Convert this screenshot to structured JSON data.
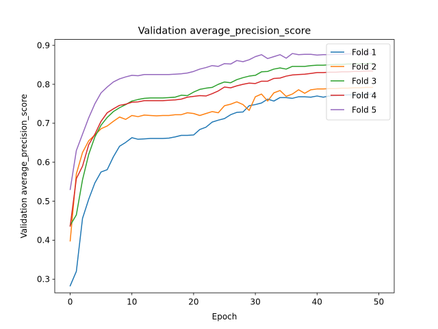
{
  "chart_data": {
    "type": "line",
    "title": "Validation average_precision_score",
    "xlabel": "Epoch",
    "ylabel": "Validation average_precision_score",
    "xlim": [
      -2.5,
      52.5
    ],
    "ylim": [
      0.265,
      0.915
    ],
    "xticks": [
      0,
      10,
      20,
      30,
      40,
      50
    ],
    "yticks": [
      0.3,
      0.4,
      0.5,
      0.6,
      0.7,
      0.8,
      0.9
    ],
    "grid": false,
    "legend_position": "top-right",
    "x": [
      0,
      1,
      2,
      3,
      4,
      5,
      6,
      7,
      8,
      9,
      10,
      11,
      12,
      13,
      14,
      15,
      16,
      17,
      18,
      19,
      20,
      21,
      22,
      23,
      24,
      25,
      26,
      27,
      28,
      29,
      30,
      31,
      32,
      33,
      34,
      35,
      36,
      37,
      38,
      39,
      40,
      41,
      42,
      43,
      44,
      45,
      46,
      47,
      48,
      49
    ],
    "series": [
      {
        "name": "Fold 1",
        "color": "#1f77b4",
        "values": [
          0.283,
          0.32,
          0.456,
          0.505,
          0.547,
          0.575,
          0.581,
          0.614,
          0.641,
          0.651,
          0.663,
          0.659,
          0.66,
          0.661,
          0.661,
          0.661,
          0.662,
          0.665,
          0.669,
          0.669,
          0.67,
          0.684,
          0.69,
          0.703,
          0.708,
          0.712,
          0.722,
          0.728,
          0.729,
          0.745,
          0.748,
          0.752,
          0.762,
          0.757,
          0.766,
          0.766,
          0.764,
          0.768,
          0.768,
          0.767,
          0.77,
          0.767,
          0.77,
          0.771,
          0.772,
          0.773,
          0.773,
          0.774,
          0.774,
          0.775
        ]
      },
      {
        "name": "Fold 2",
        "color": "#ff7f0e",
        "values": [
          0.398,
          0.57,
          0.625,
          0.655,
          0.67,
          0.686,
          0.693,
          0.705,
          0.716,
          0.71,
          0.72,
          0.717,
          0.721,
          0.72,
          0.719,
          0.72,
          0.72,
          0.722,
          0.722,
          0.727,
          0.725,
          0.72,
          0.725,
          0.73,
          0.727,
          0.745,
          0.749,
          0.755,
          0.748,
          0.733,
          0.768,
          0.775,
          0.757,
          0.778,
          0.784,
          0.769,
          0.775,
          0.786,
          0.777,
          0.786,
          0.788,
          0.788,
          0.789,
          0.789,
          0.79,
          0.79,
          0.791,
          0.791,
          0.792,
          0.792
        ]
      },
      {
        "name": "Fold 3",
        "color": "#2ca02c",
        "values": [
          0.438,
          0.465,
          0.555,
          0.62,
          0.665,
          0.695,
          0.715,
          0.73,
          0.74,
          0.748,
          0.757,
          0.761,
          0.764,
          0.765,
          0.765,
          0.765,
          0.766,
          0.767,
          0.772,
          0.771,
          0.78,
          0.787,
          0.79,
          0.792,
          0.8,
          0.806,
          0.804,
          0.812,
          0.817,
          0.821,
          0.823,
          0.832,
          0.833,
          0.839,
          0.842,
          0.839,
          0.846,
          0.846,
          0.846,
          0.848,
          0.849,
          0.849,
          0.85,
          0.851,
          0.851,
          0.852,
          0.852,
          0.853,
          0.853,
          0.854
        ]
      },
      {
        "name": "Fold 4",
        "color": "#d62728",
        "values": [
          0.436,
          0.558,
          0.59,
          0.645,
          0.672,
          0.705,
          0.727,
          0.737,
          0.746,
          0.749,
          0.754,
          0.755,
          0.758,
          0.758,
          0.758,
          0.758,
          0.759,
          0.76,
          0.762,
          0.767,
          0.769,
          0.771,
          0.77,
          0.776,
          0.783,
          0.793,
          0.791,
          0.796,
          0.8,
          0.803,
          0.802,
          0.808,
          0.808,
          0.815,
          0.816,
          0.821,
          0.824,
          0.825,
          0.826,
          0.828,
          0.83,
          0.83,
          0.831,
          0.831,
          0.832,
          0.832,
          0.833,
          0.833,
          0.834,
          0.834
        ]
      },
      {
        "name": "Fold 5",
        "color": "#9467bd",
        "values": [
          0.53,
          0.63,
          0.672,
          0.714,
          0.75,
          0.778,
          0.793,
          0.806,
          0.814,
          0.819,
          0.823,
          0.822,
          0.825,
          0.825,
          0.825,
          0.825,
          0.825,
          0.826,
          0.827,
          0.829,
          0.833,
          0.839,
          0.843,
          0.848,
          0.846,
          0.853,
          0.852,
          0.861,
          0.858,
          0.863,
          0.871,
          0.876,
          0.866,
          0.871,
          0.876,
          0.867,
          0.879,
          0.876,
          0.877,
          0.877,
          0.875,
          0.876,
          0.876,
          0.877,
          0.877,
          0.878,
          0.878,
          0.878,
          0.879,
          0.879
        ]
      }
    ]
  }
}
